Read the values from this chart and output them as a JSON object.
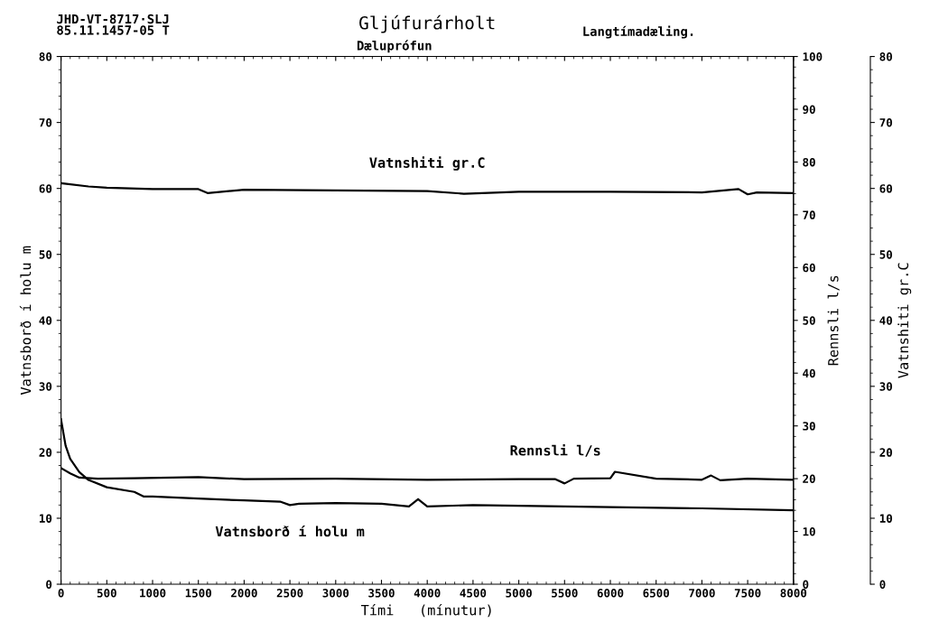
{
  "chart_data": {
    "type": "line",
    "title": "Gljúfurárholt",
    "subtitle": "Dæluprófun",
    "xlabel": "Tími   (mínutur)",
    "ylabel": "Vatnsborð í holu m",
    "y2label": "Rennsli l/s",
    "y3label": "Vatnshiti gr.C",
    "xlim": [
      0,
      8000
    ],
    "xticks": [
      0,
      500,
      1000,
      1500,
      2000,
      2500,
      3000,
      3500,
      4000,
      4500,
      5000,
      5500,
      6000,
      6500,
      7000,
      7500,
      8000
    ],
    "ylim": [
      0,
      80
    ],
    "yticks": [
      0,
      10,
      20,
      30,
      40,
      50,
      60,
      70,
      80
    ],
    "y2lim": [
      0,
      100
    ],
    "y2ticks": [
      0,
      10,
      20,
      30,
      40,
      50,
      60,
      70,
      80,
      90,
      100
    ],
    "y3lim": [
      0,
      80
    ],
    "y3ticks": [
      0,
      10,
      20,
      30,
      40,
      50,
      60,
      70,
      80
    ],
    "grid": false,
    "legend": false,
    "line_style": "solid",
    "marker": "none",
    "series": [
      {
        "name": "Vatnsborð í holu m",
        "color": "#000000",
        "x": [
          0,
          50,
          100,
          200,
          300,
          500,
          800,
          900,
          1000,
          1500,
          2000,
          2400,
          2500,
          2600,
          3000,
          3500,
          3800,
          3900,
          4000,
          4500,
          5000,
          6000,
          7000,
          8000
        ],
        "values": [
          25,
          21,
          19,
          17,
          15.8,
          14.7,
          14,
          13.3,
          13.3,
          13,
          12.7,
          12.5,
          12,
          12.2,
          12.3,
          12.2,
          11.8,
          12.9,
          11.8,
          12,
          11.9,
          11.7,
          11.5,
          11.2
        ]
      },
      {
        "name": "Rennsli l/s",
        "color": "#000000",
        "axis": "y2",
        "x": [
          0,
          100,
          200,
          400,
          800,
          1500,
          2000,
          3000,
          4000,
          5000,
          5400,
          5500,
          5600,
          6000,
          6050,
          6500,
          7000,
          7100,
          7200,
          7500,
          8000
        ],
        "values": [
          22,
          21,
          20.2,
          20,
          20.1,
          20.3,
          19.9,
          20,
          19.8,
          19.9,
          19.9,
          19.1,
          20,
          20.1,
          21.3,
          20,
          19.8,
          20.6,
          19.7,
          20,
          19.8
        ]
      },
      {
        "name": "Vatnshiti gr.C",
        "color": "#000000",
        "axis": "y3",
        "x": [
          0,
          300,
          500,
          1000,
          1500,
          1600,
          2000,
          3000,
          4000,
          4400,
          5000,
          6000,
          7000,
          7400,
          7500,
          7600,
          8000
        ],
        "values": [
          60.8,
          60.3,
          60.1,
          59.9,
          59.9,
          59.3,
          59.8,
          59.7,
          59.6,
          59.2,
          59.5,
          59.5,
          59.4,
          59.9,
          59.1,
          59.4,
          59.3
        ]
      }
    ],
    "annotations": [
      "JHD-VT-8717·SLJ\n85.11.1457-05 T",
      "Langtímadæling."
    ]
  }
}
